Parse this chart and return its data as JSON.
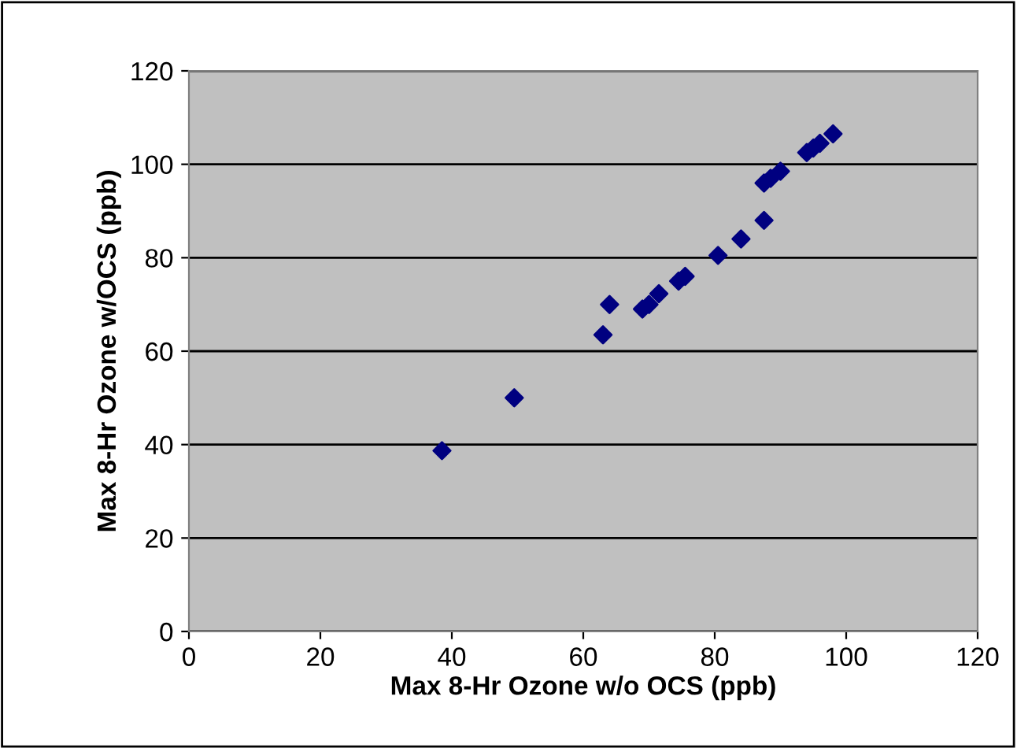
{
  "chart_data": {
    "type": "scatter",
    "xlabel": "Max 8-Hr Ozone w/o OCS (ppb)",
    "ylabel": "Max 8-Hr Ozone w/OCS (ppb)",
    "x": [
      38.5,
      49.5,
      63,
      63.5,
      64,
      69,
      70,
      71.5,
      74.5,
      75.5,
      80.5,
      84,
      87.5,
      87.5,
      88.5,
      89.5,
      90,
      94,
      95,
      96,
      98
    ],
    "series": [
      {
        "color": "#000080",
        "values": [
          38.7,
          50,
          63.5,
          null,
          70,
          69,
          70,
          72.3,
          75,
          76,
          80.5,
          84,
          88,
          96,
          97,
          null,
          98.5,
          102.5,
          103.5,
          104.5,
          106.5
        ]
      }
    ],
    "xlim": [
      0,
      120
    ],
    "ylim": [
      0,
      120
    ],
    "xticks": [
      0,
      20,
      40,
      60,
      80,
      100,
      120
    ],
    "yticks": [
      0,
      20,
      40,
      60,
      80,
      100,
      120
    ],
    "grid": "y",
    "marker": "diamond",
    "legend": false
  }
}
